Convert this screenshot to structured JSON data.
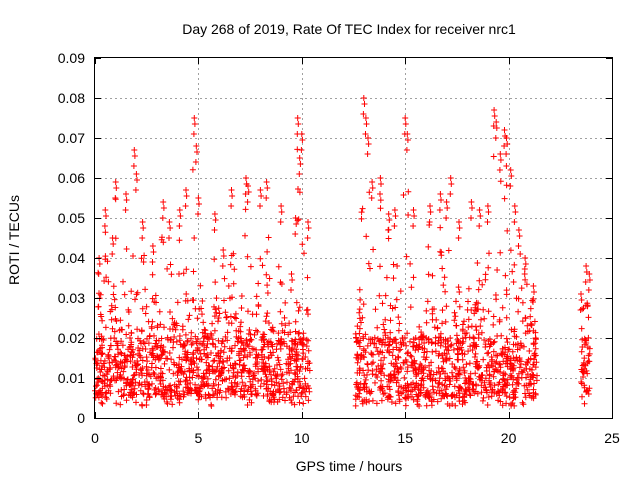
{
  "chart_data": {
    "type": "scatter",
    "title": "Day 268 of 2019, Rate Of TEC Index for receiver nrc1",
    "xlabel": "GPS time / hours",
    "ylabel": "ROTI / TECUs",
    "xlim": [
      0,
      25
    ],
    "ylim": [
      0,
      0.09
    ],
    "grid": true,
    "marker": "+",
    "color": "#ff0000",
    "x_ticks": [
      0,
      5,
      10,
      15,
      20,
      25
    ],
    "y_ticks": [
      0,
      0.01,
      0.02,
      0.03,
      0.04,
      0.05,
      0.06,
      0.07,
      0.08,
      0.09
    ],
    "x_tick_labels": [
      "0",
      "5",
      "10",
      "15",
      "20",
      "25"
    ],
    "y_tick_labels": [
      "0",
      "0.01",
      "0.02",
      "0.03",
      "0.04",
      "0.05",
      "0.06",
      "0.07",
      "0.08",
      "0.09"
    ],
    "coverage_segments": [
      {
        "start_hour": 0.0,
        "end_hour": 10.4
      },
      {
        "start_hour": 12.6,
        "end_hour": 21.4
      },
      {
        "start_hour": 23.5,
        "end_hour": 23.95
      }
    ],
    "peaks": [
      {
        "x": 0.2,
        "y": 0.04
      },
      {
        "x": 0.5,
        "y": 0.052
      },
      {
        "x": 0.85,
        "y": 0.045
      },
      {
        "x": 1.0,
        "y": 0.059
      },
      {
        "x": 1.5,
        "y": 0.056
      },
      {
        "x": 1.9,
        "y": 0.067
      },
      {
        "x": 2.0,
        "y": 0.061
      },
      {
        "x": 2.3,
        "y": 0.049
      },
      {
        "x": 2.8,
        "y": 0.043
      },
      {
        "x": 3.3,
        "y": 0.054
      },
      {
        "x": 3.6,
        "y": 0.049
      },
      {
        "x": 4.1,
        "y": 0.052
      },
      {
        "x": 4.4,
        "y": 0.057
      },
      {
        "x": 4.8,
        "y": 0.075
      },
      {
        "x": 4.9,
        "y": 0.068
      },
      {
        "x": 5.0,
        "y": 0.055
      },
      {
        "x": 5.8,
        "y": 0.051
      },
      {
        "x": 6.2,
        "y": 0.042
      },
      {
        "x": 6.6,
        "y": 0.057
      },
      {
        "x": 7.3,
        "y": 0.06
      },
      {
        "x": 7.4,
        "y": 0.058
      },
      {
        "x": 8.0,
        "y": 0.057
      },
      {
        "x": 8.3,
        "y": 0.059
      },
      {
        "x": 9.0,
        "y": 0.053
      },
      {
        "x": 9.5,
        "y": 0.036
      },
      {
        "x": 9.7,
        "y": 0.05
      },
      {
        "x": 9.8,
        "y": 0.075
      },
      {
        "x": 9.9,
        "y": 0.065
      },
      {
        "x": 10.0,
        "y": 0.071
      },
      {
        "x": 10.3,
        "y": 0.049
      },
      {
        "x": 13.0,
        "y": 0.08
      },
      {
        "x": 13.1,
        "y": 0.075
      },
      {
        "x": 13.2,
        "y": 0.07
      },
      {
        "x": 13.4,
        "y": 0.059
      },
      {
        "x": 13.8,
        "y": 0.06
      },
      {
        "x": 14.2,
        "y": 0.051
      },
      {
        "x": 14.5,
        "y": 0.052
      },
      {
        "x": 15.0,
        "y": 0.075
      },
      {
        "x": 15.1,
        "y": 0.071
      },
      {
        "x": 15.4,
        "y": 0.052
      },
      {
        "x": 16.2,
        "y": 0.053
      },
      {
        "x": 16.7,
        "y": 0.056
      },
      {
        "x": 17.0,
        "y": 0.054
      },
      {
        "x": 17.2,
        "y": 0.06
      },
      {
        "x": 17.6,
        "y": 0.049
      },
      {
        "x": 18.2,
        "y": 0.054
      },
      {
        "x": 18.6,
        "y": 0.052
      },
      {
        "x": 19.0,
        "y": 0.053
      },
      {
        "x": 19.3,
        "y": 0.077
      },
      {
        "x": 19.4,
        "y": 0.074
      },
      {
        "x": 19.6,
        "y": 0.066
      },
      {
        "x": 19.8,
        "y": 0.072
      },
      {
        "x": 19.9,
        "y": 0.07
      },
      {
        "x": 20.1,
        "y": 0.062
      },
      {
        "x": 20.3,
        "y": 0.053
      },
      {
        "x": 20.5,
        "y": 0.047
      },
      {
        "x": 20.8,
        "y": 0.04
      },
      {
        "x": 21.2,
        "y": 0.033
      },
      {
        "x": 23.5,
        "y": 0.031
      },
      {
        "x": 23.75,
        "y": 0.038
      },
      {
        "x": 23.9,
        "y": 0.036
      }
    ],
    "typical_range": {
      "low": 0.005,
      "high": 0.02
    },
    "approx_point_count": 2200
  }
}
